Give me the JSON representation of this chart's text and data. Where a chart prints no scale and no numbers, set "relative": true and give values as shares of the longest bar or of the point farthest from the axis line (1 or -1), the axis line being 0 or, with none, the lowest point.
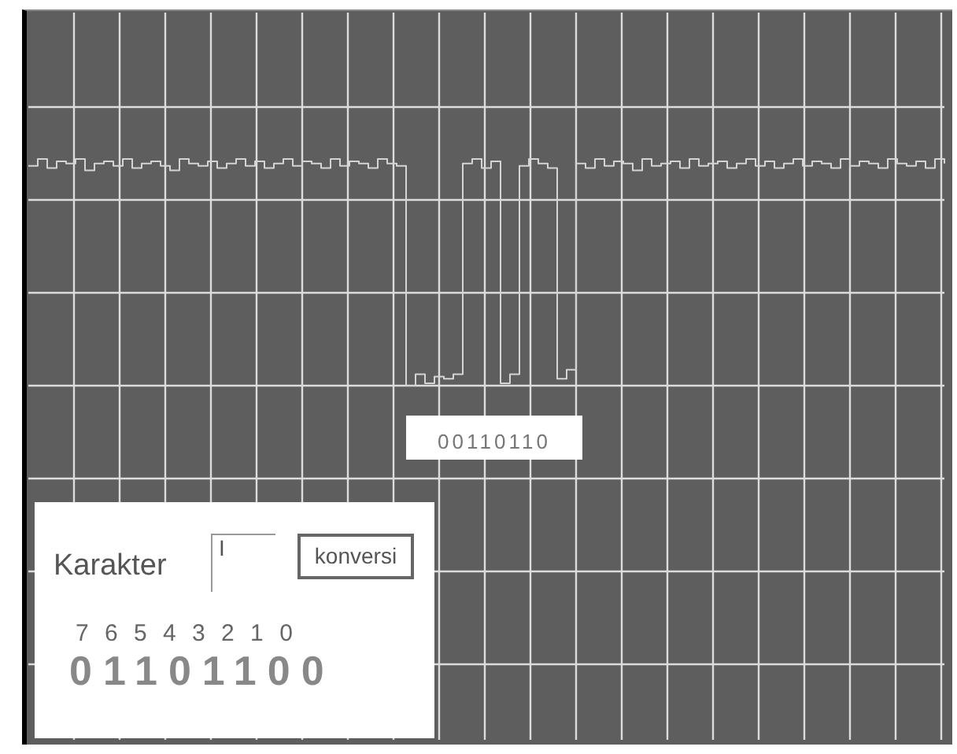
{
  "chart_data": {
    "type": "step",
    "relative": true,
    "grid": true,
    "categories": [
      null,
      null,
      null,
      null,
      null,
      null,
      null,
      null,
      null,
      null,
      null,
      null,
      null,
      null,
      null,
      null,
      null,
      null,
      null,
      null,
      null,
      null,
      null,
      null,
      null,
      null,
      null,
      null,
      null,
      null,
      null,
      null,
      null,
      null,
      null,
      null,
      null,
      null,
      null,
      null,
      null,
      null,
      null,
      null,
      null,
      null,
      null,
      null,
      null,
      null,
      null,
      null,
      null,
      null,
      null,
      null,
      null,
      null,
      null,
      null,
      null,
      null,
      null,
      null,
      null,
      null,
      null,
      null,
      null,
      null,
      null,
      null,
      null,
      null,
      null,
      null,
      null,
      null,
      null,
      null,
      null,
      null,
      null,
      null,
      null,
      null,
      null,
      null,
      null,
      null,
      null,
      null,
      null,
      null,
      null,
      null,
      null,
      null
    ],
    "series": [
      {
        "color": "#d4d4d4",
        "values": [
          0.97,
          1,
          0.96,
          0.99,
          0.98,
          1,
          0.95,
          0.98,
          0.99,
          0.97,
          1,
          0.96,
          0.98,
          0.99,
          0.97,
          0.95,
          1,
          0.98,
          0.97,
          0.99,
          0.96,
          0.98,
          1,
          0.97,
          0.99,
          0.96,
          0.98,
          1,
          0.97,
          0.99,
          0.98,
          0.96,
          1,
          0.97,
          0.99,
          0.98,
          0.96,
          1,
          0.98,
          0.97,
          0,
          0.05,
          0.01,
          0.04,
          0.03,
          0.05,
          0.98,
          1,
          0.96,
          0.99,
          0.01,
          0.05,
          0.97,
          1,
          0.98,
          0.96,
          0.03,
          0.07,
          0.98,
          0.96,
          1,
          0.97,
          0.99,
          0.98,
          0.95,
          1,
          0.97,
          0.98,
          0.99,
          0.96,
          1,
          0.97,
          0.98,
          0.99,
          0.96,
          0.98,
          1,
          0.97,
          0.99,
          0.96,
          0.98,
          1,
          0.97,
          0.99,
          0.98,
          0.96,
          1,
          0.97,
          0.99,
          0.98,
          0.96,
          1,
          0.98,
          0.97,
          0.99,
          0.96,
          1,
          0.98
        ]
      }
    ],
    "annotations": [
      "00110110",
      "Karakter",
      "I",
      "konversi",
      "7 6 5 4 3 2 1 0",
      "01101100"
    ]
  }
}
